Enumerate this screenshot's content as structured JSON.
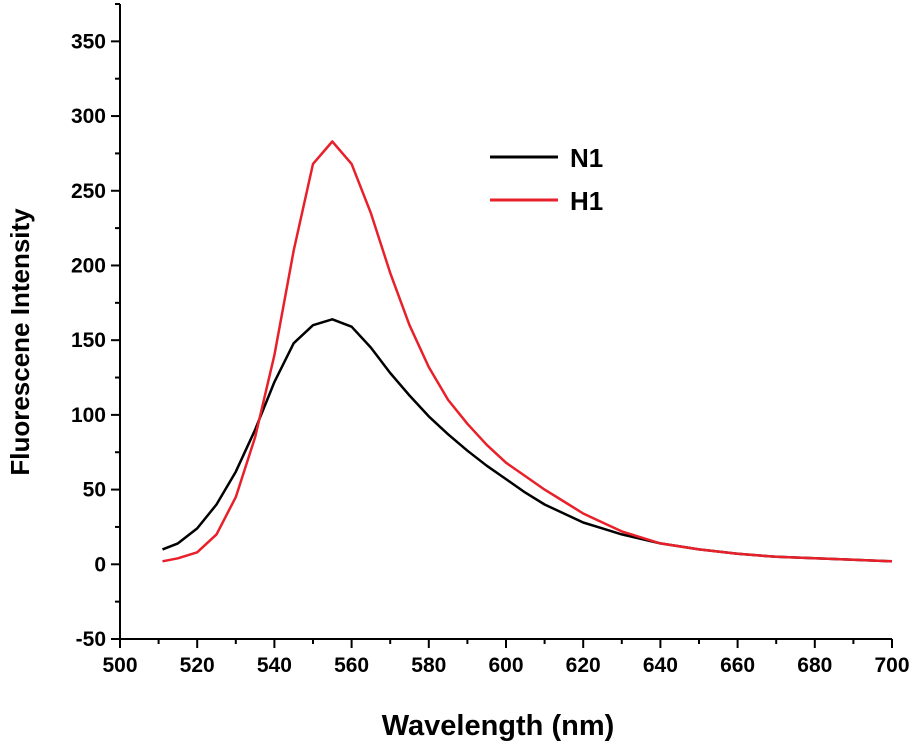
{
  "chart_data": {
    "type": "line",
    "title": "",
    "xlabel": "Wavelength (nm)",
    "ylabel": "Fluorescene Intensity",
    "xlim": [
      500,
      700
    ],
    "ylim": [
      -50,
      375
    ],
    "x_ticks": [
      500,
      520,
      540,
      560,
      580,
      600,
      620,
      640,
      660,
      680,
      700
    ],
    "y_ticks": [
      -50,
      0,
      50,
      100,
      150,
      200,
      250,
      300,
      350
    ],
    "grid": false,
    "legend_position": "top-right",
    "series": [
      {
        "name": "N1",
        "color": "#000000",
        "points": [
          [
            511,
            10
          ],
          [
            515,
            14
          ],
          [
            520,
            24
          ],
          [
            525,
            40
          ],
          [
            530,
            62
          ],
          [
            535,
            90
          ],
          [
            540,
            122
          ],
          [
            545,
            148
          ],
          [
            550,
            160
          ],
          [
            555,
            164
          ],
          [
            560,
            159
          ],
          [
            565,
            145
          ],
          [
            570,
            128
          ],
          [
            575,
            113
          ],
          [
            580,
            99
          ],
          [
            585,
            87
          ],
          [
            590,
            76
          ],
          [
            595,
            66
          ],
          [
            600,
            57
          ],
          [
            605,
            48
          ],
          [
            610,
            40
          ],
          [
            615,
            34
          ],
          [
            620,
            28
          ],
          [
            625,
            24
          ],
          [
            630,
            20
          ],
          [
            635,
            17
          ],
          [
            640,
            14
          ],
          [
            650,
            10
          ],
          [
            660,
            7
          ],
          [
            670,
            5
          ],
          [
            680,
            4
          ],
          [
            690,
            3
          ],
          [
            700,
            2
          ]
        ]
      },
      {
        "name": "H1",
        "color": "#e8202a",
        "points": [
          [
            511,
            2
          ],
          [
            515,
            4
          ],
          [
            520,
            8
          ],
          [
            525,
            20
          ],
          [
            530,
            45
          ],
          [
            535,
            85
          ],
          [
            540,
            140
          ],
          [
            545,
            210
          ],
          [
            550,
            268
          ],
          [
            555,
            283
          ],
          [
            560,
            268
          ],
          [
            565,
            235
          ],
          [
            570,
            195
          ],
          [
            575,
            160
          ],
          [
            580,
            132
          ],
          [
            585,
            110
          ],
          [
            590,
            94
          ],
          [
            595,
            80
          ],
          [
            600,
            68
          ],
          [
            605,
            59
          ],
          [
            610,
            50
          ],
          [
            615,
            42
          ],
          [
            620,
            34
          ],
          [
            625,
            28
          ],
          [
            630,
            22
          ],
          [
            635,
            18
          ],
          [
            640,
            14
          ],
          [
            650,
            10
          ],
          [
            660,
            7
          ],
          [
            670,
            5
          ],
          [
            680,
            4
          ],
          [
            690,
            3
          ],
          [
            700,
            2
          ]
        ]
      }
    ]
  }
}
